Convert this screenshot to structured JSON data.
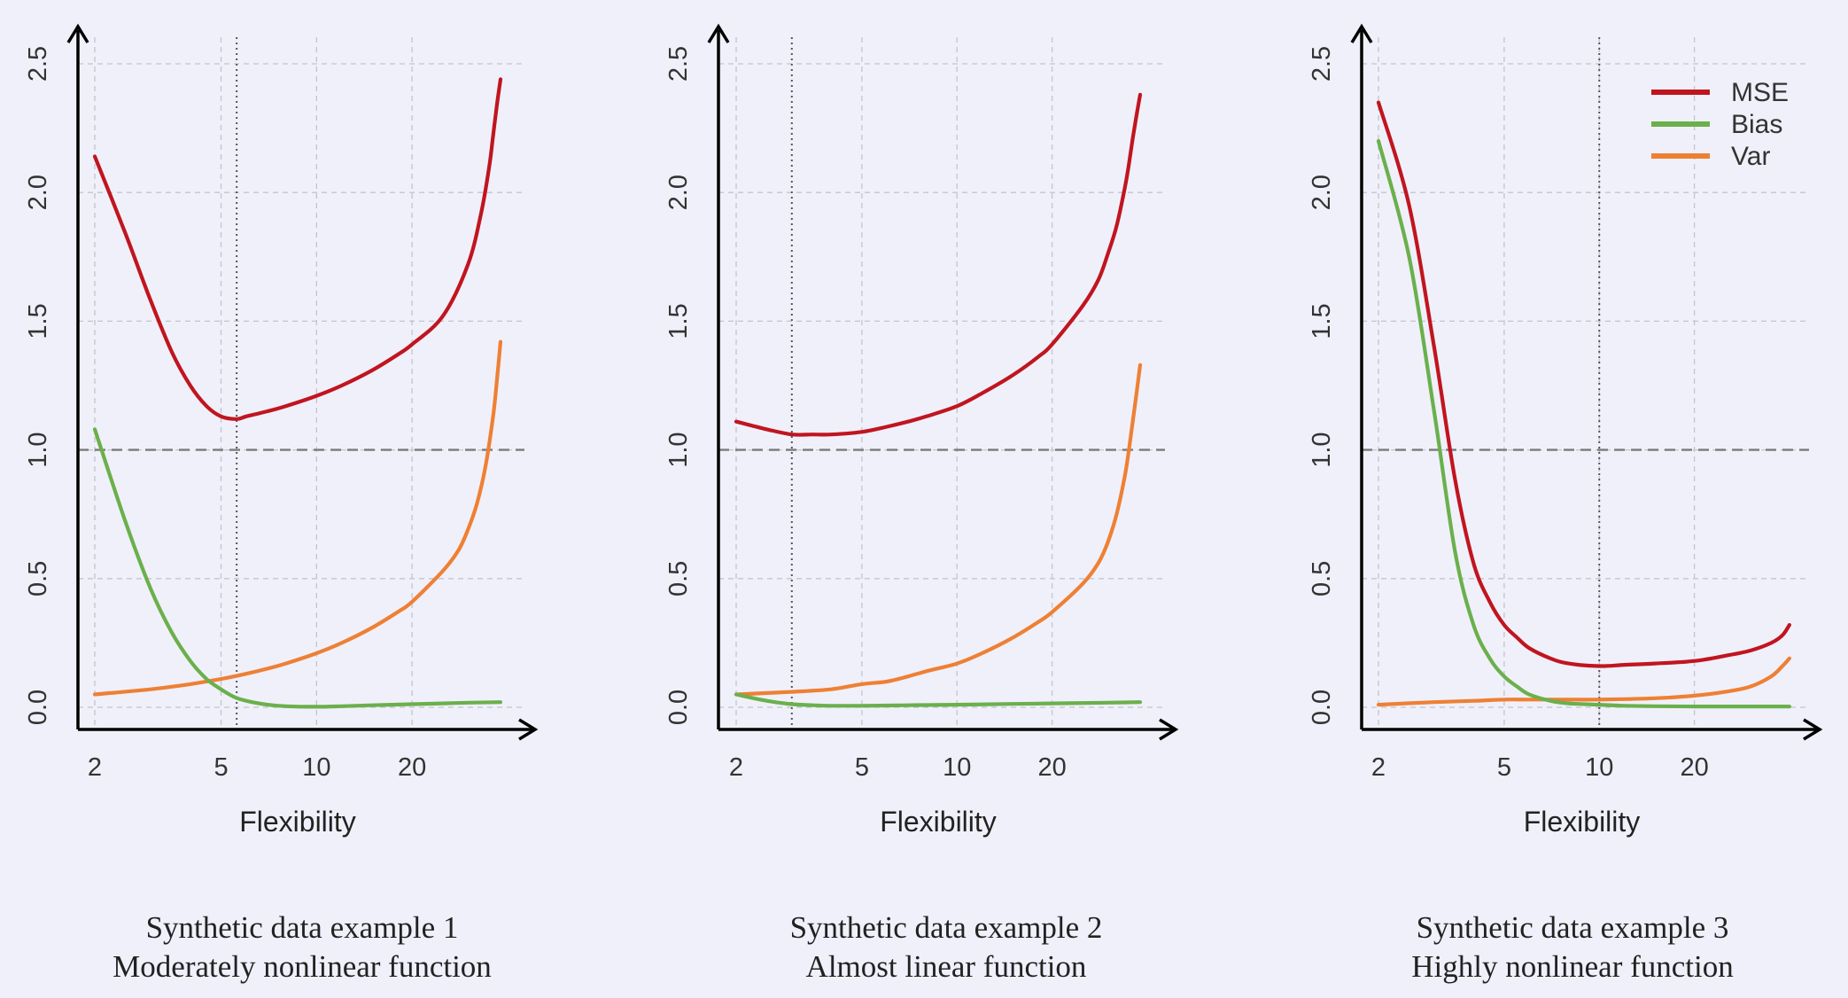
{
  "chart_data": [
    {
      "type": "line",
      "caption": [
        "Synthetic data example 1",
        "Moderately nonlinear function"
      ],
      "xlabel": "Flexibility",
      "ylabel": "",
      "xscale": "log",
      "xlim": [
        1.8,
        41
      ],
      "ylim": [
        -0.1,
        2.68
      ],
      "x_ticks": [
        2,
        5,
        10,
        20
      ],
      "y_ticks": [
        0.0,
        0.5,
        1.0,
        1.5,
        2.0,
        2.5
      ],
      "y_tick_labels": [
        "0.0",
        "0.5",
        "1.0",
        "1.5",
        "2.0",
        "2.5"
      ],
      "grid": true,
      "reference_hline": 1.0,
      "optimum_vline": 5.6,
      "series": [
        {
          "name": "MSE",
          "color": "#c0151f",
          "x": [
            2,
            2.5,
            3,
            3.5,
            4,
            4.5,
            5,
            5.6,
            6,
            7,
            8,
            10,
            12,
            15,
            18,
            20,
            25,
            30,
            33,
            35,
            36,
            37,
            38
          ],
          "y": [
            2.14,
            1.84,
            1.58,
            1.38,
            1.25,
            1.17,
            1.13,
            1.12,
            1.13,
            1.15,
            1.17,
            1.21,
            1.25,
            1.31,
            1.37,
            1.41,
            1.52,
            1.72,
            1.92,
            2.1,
            2.22,
            2.34,
            2.44
          ]
        },
        {
          "name": "Bias",
          "color": "#6ab04c",
          "x": [
            2,
            2.5,
            3,
            3.5,
            4,
            4.5,
            5,
            5.5,
            6,
            7,
            8,
            10,
            12,
            15,
            20,
            25,
            30,
            38
          ],
          "y": [
            1.08,
            0.72,
            0.46,
            0.29,
            0.18,
            0.11,
            0.07,
            0.04,
            0.025,
            0.01,
            0.004,
            0.002,
            0.004,
            0.008,
            0.012,
            0.015,
            0.018,
            0.02
          ]
        },
        {
          "name": "Var",
          "color": "#ee8034",
          "x": [
            2,
            3,
            4,
            5,
            6,
            7,
            8,
            10,
            12,
            15,
            18,
            20,
            25,
            28,
            30,
            32,
            34,
            36,
            37,
            38
          ],
          "y": [
            0.05,
            0.07,
            0.09,
            0.11,
            0.13,
            0.15,
            0.17,
            0.21,
            0.25,
            0.31,
            0.37,
            0.41,
            0.53,
            0.61,
            0.69,
            0.79,
            0.93,
            1.13,
            1.27,
            1.42
          ]
        }
      ]
    },
    {
      "type": "line",
      "caption": [
        "Synthetic data example 2",
        "Almost linear function"
      ],
      "xlabel": "Flexibility",
      "ylabel": "",
      "xscale": "log",
      "xlim": [
        1.8,
        41
      ],
      "ylim": [
        -0.1,
        2.68
      ],
      "x_ticks": [
        2,
        5,
        10,
        20
      ],
      "y_ticks": [
        0.0,
        0.5,
        1.0,
        1.5,
        2.0,
        2.5
      ],
      "y_tick_labels": [
        "0.0",
        "0.5",
        "1.0",
        "1.5",
        "2.0",
        "2.5"
      ],
      "grid": true,
      "reference_hline": 1.0,
      "optimum_vline": 3.0,
      "series": [
        {
          "name": "MSE",
          "color": "#c0151f",
          "x": [
            2,
            2.5,
            3,
            3.5,
            4,
            5,
            6,
            7,
            8,
            10,
            12,
            15,
            18,
            20,
            25,
            28,
            30,
            32,
            34,
            35,
            36,
            37,
            38
          ],
          "y": [
            1.11,
            1.08,
            1.06,
            1.06,
            1.06,
            1.07,
            1.09,
            1.11,
            1.13,
            1.17,
            1.22,
            1.29,
            1.36,
            1.41,
            1.56,
            1.66,
            1.76,
            1.87,
            2.02,
            2.11,
            2.21,
            2.3,
            2.38
          ]
        },
        {
          "name": "Bias",
          "color": "#6ab04c",
          "x": [
            2,
            2.5,
            3,
            3.5,
            4,
            5,
            7,
            10,
            15,
            20,
            30,
            38
          ],
          "y": [
            0.05,
            0.025,
            0.012,
            0.008,
            0.006,
            0.006,
            0.008,
            0.01,
            0.013,
            0.015,
            0.018,
            0.02
          ]
        },
        {
          "name": "Var",
          "color": "#ee8034",
          "x": [
            2,
            3,
            4,
            5,
            6,
            7,
            8,
            10,
            12,
            15,
            18,
            20,
            25,
            28,
            30,
            32,
            34,
            35,
            36,
            37,
            38
          ],
          "y": [
            0.05,
            0.06,
            0.07,
            0.09,
            0.1,
            0.12,
            0.14,
            0.17,
            0.21,
            0.27,
            0.33,
            0.37,
            0.48,
            0.56,
            0.64,
            0.75,
            0.9,
            1.0,
            1.11,
            1.22,
            1.33
          ]
        }
      ]
    },
    {
      "type": "line",
      "caption": [
        "Synthetic data example 3",
        "Highly nonlinear function"
      ],
      "xlabel": "Flexibility",
      "ylabel": "",
      "xscale": "log",
      "xlim": [
        1.8,
        41
      ],
      "ylim": [
        -0.1,
        2.68
      ],
      "x_ticks": [
        2,
        5,
        10,
        20
      ],
      "y_ticks": [
        0.0,
        0.5,
        1.0,
        1.5,
        2.0,
        2.5
      ],
      "y_tick_labels": [
        "0.0",
        "0.5",
        "1.0",
        "1.5",
        "2.0",
        "2.5"
      ],
      "grid": true,
      "reference_hline": 1.0,
      "optimum_vline": 10.0,
      "legend": {
        "position": "top-right",
        "entries": [
          "MSE",
          "Bias",
          "Var"
        ]
      },
      "series": [
        {
          "name": "MSE",
          "color": "#c0151f",
          "x": [
            2,
            2.5,
            3,
            3.5,
            4,
            4.5,
            5,
            5.5,
            6,
            7,
            8,
            10,
            12,
            15,
            20,
            25,
            30,
            35,
            38,
            40
          ],
          "y": [
            2.35,
            1.95,
            1.4,
            0.88,
            0.56,
            0.41,
            0.32,
            0.27,
            0.23,
            0.19,
            0.17,
            0.16,
            0.165,
            0.17,
            0.18,
            0.2,
            0.22,
            0.25,
            0.28,
            0.32
          ]
        },
        {
          "name": "Bias",
          "color": "#6ab04c",
          "x": [
            2,
            2.5,
            3,
            3.5,
            4,
            4.5,
            5,
            5.5,
            6,
            7,
            8,
            10,
            12,
            15,
            20,
            30,
            40
          ],
          "y": [
            2.2,
            1.75,
            1.15,
            0.6,
            0.32,
            0.19,
            0.12,
            0.08,
            0.05,
            0.025,
            0.015,
            0.01,
            0.006,
            0.004,
            0.003,
            0.003,
            0.003
          ]
        },
        {
          "name": "Var",
          "color": "#ee8034",
          "x": [
            2,
            3,
            4,
            5,
            6,
            8,
            10,
            15,
            20,
            25,
            30,
            35,
            38,
            40
          ],
          "y": [
            0.01,
            0.02,
            0.025,
            0.03,
            0.03,
            0.03,
            0.03,
            0.035,
            0.045,
            0.06,
            0.08,
            0.12,
            0.16,
            0.19
          ]
        }
      ]
    }
  ]
}
